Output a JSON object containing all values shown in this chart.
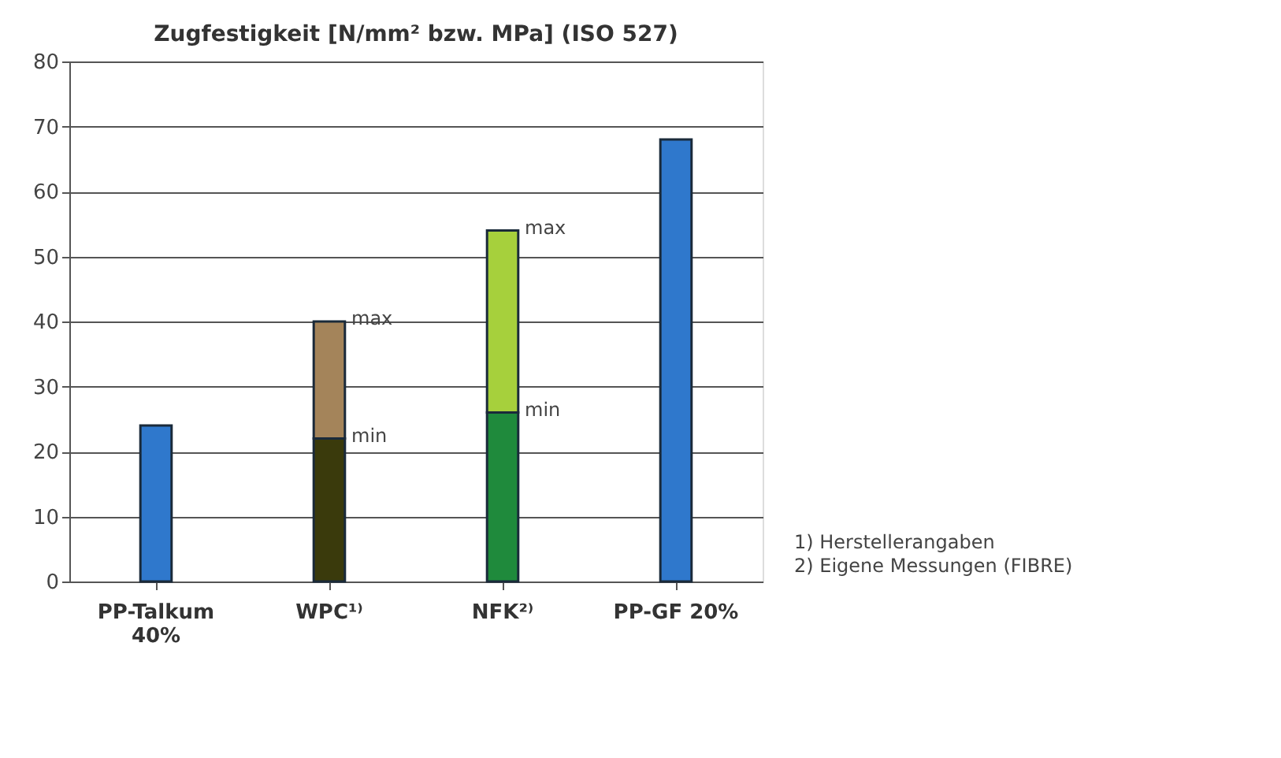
{
  "chart_data": {
    "type": "bar",
    "title": "Zugfestigkeit [N/mm² bzw. MPa] (ISO 527)",
    "categories": [
      "PP-Talkum 40%",
      "WPC¹⁾",
      "NFK²⁾",
      "PP-GF 20%"
    ],
    "stacked": true,
    "series": [
      {
        "colors": [
          "#2f78cc",
          "#3a3a0c",
          "#1f8a3c",
          "#2f78cc"
        ],
        "values": [
          24,
          22,
          26,
          68
        ]
      },
      {
        "colors": [
          null,
          "#a4845a",
          "#a6d03c",
          null
        ],
        "values": [
          null,
          18,
          28,
          null
        ]
      }
    ],
    "ylim": [
      0,
      80
    ],
    "yticks": [
      0,
      10,
      20,
      30,
      40,
      50,
      60,
      70,
      80
    ],
    "grid": "y",
    "annotations": [
      {
        "text": "min",
        "x": "WPC¹⁾",
        "y": 22
      },
      {
        "text": "max",
        "x": "WPC¹⁾",
        "y": 40
      },
      {
        "text": "min",
        "x": "NFK²⁾",
        "y": 26
      },
      {
        "text": "max",
        "x": "NFK²⁾",
        "y": 54
      },
      "1) Herstellerangaben",
      "2) Eigene Messungen (FIBRE)"
    ]
  }
}
